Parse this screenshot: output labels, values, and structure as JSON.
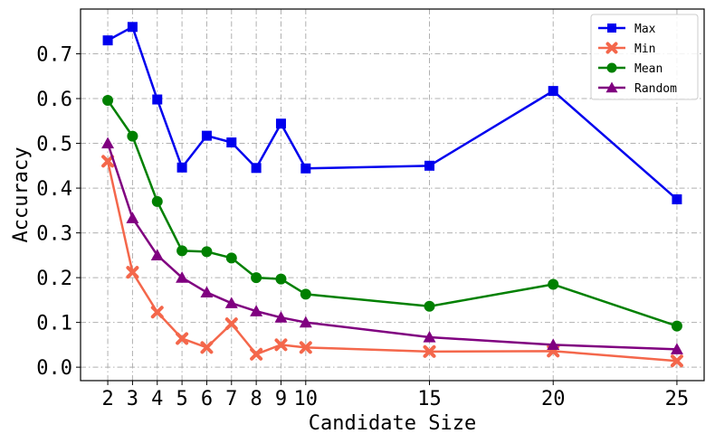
{
  "chart_data": {
    "type": "line",
    "title": "",
    "xlabel": "Candidate Size",
    "ylabel": "Accuracy",
    "x": [
      2,
      3,
      4,
      5,
      6,
      7,
      8,
      9,
      10,
      15,
      20,
      25
    ],
    "xlim": [
      0.9,
      26.1
    ],
    "ylim": [
      -0.03,
      0.8
    ],
    "x_ticks": [
      2,
      3,
      4,
      5,
      6,
      7,
      8,
      9,
      10,
      15,
      20,
      25
    ],
    "y_ticks": [
      0.0,
      0.1,
      0.2,
      0.3,
      0.4,
      0.5,
      0.6,
      0.7
    ],
    "y_tick_labels": [
      "0.0",
      "0.1",
      "0.2",
      "0.3",
      "0.4",
      "0.5",
      "0.6",
      "0.7"
    ],
    "grid": true,
    "legend_position": "top-right",
    "series": [
      {
        "name": "Max",
        "color": "#0000ee",
        "marker": "square",
        "values": [
          0.73,
          0.76,
          0.598,
          0.446,
          0.517,
          0.502,
          0.445,
          0.544,
          0.444,
          0.45,
          0.617,
          0.375
        ]
      },
      {
        "name": "Min",
        "color": "#f4674b",
        "marker": "x",
        "values": [
          0.46,
          0.212,
          0.123,
          0.064,
          0.044,
          0.097,
          0.029,
          0.05,
          0.044,
          0.035,
          0.036,
          0.014
        ]
      },
      {
        "name": "Mean",
        "color": "#008000",
        "marker": "circle",
        "values": [
          0.596,
          0.516,
          0.37,
          0.26,
          0.258,
          0.244,
          0.2,
          0.197,
          0.163,
          0.136,
          0.185,
          0.092
        ]
      },
      {
        "name": "Random",
        "color": "#800080",
        "marker": "triangle",
        "values": [
          0.5,
          0.333,
          0.25,
          0.2,
          0.167,
          0.143,
          0.125,
          0.111,
          0.1,
          0.067,
          0.05,
          0.04
        ]
      }
    ]
  }
}
